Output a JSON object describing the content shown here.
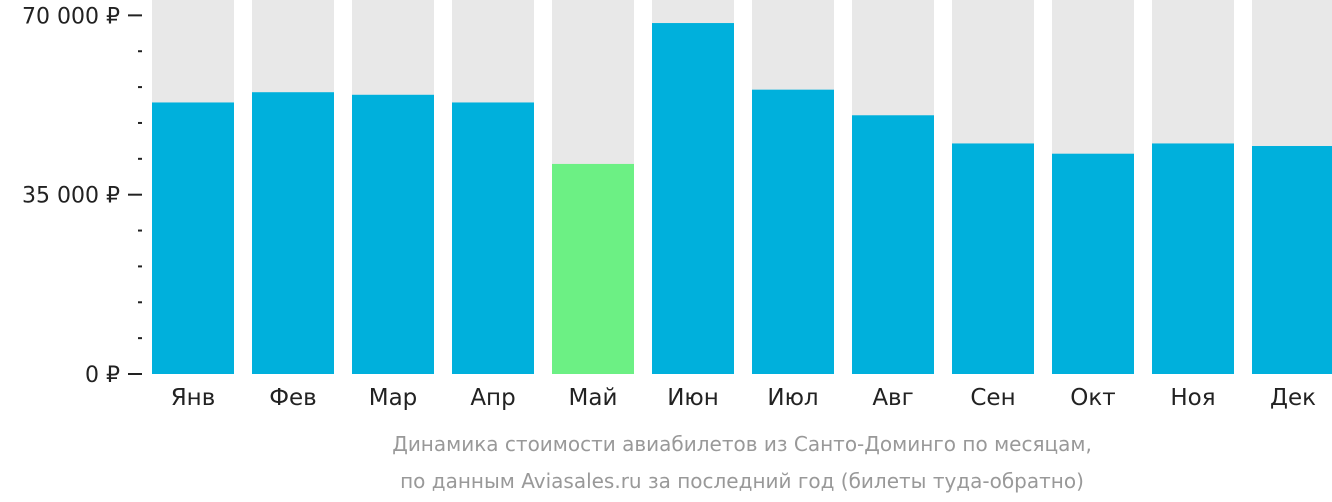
{
  "chart_data": {
    "type": "bar",
    "categories": [
      "Янв",
      "Фев",
      "Мар",
      "Апр",
      "Май",
      "Июн",
      "Июл",
      "Авг",
      "Сен",
      "Окт",
      "Ноя",
      "Дек"
    ],
    "values": [
      53000,
      55000,
      54500,
      53000,
      41000,
      68500,
      55500,
      50500,
      45000,
      43000,
      45000,
      44500
    ],
    "ylim": [
      0,
      73000
    ],
    "yticks": [
      {
        "value": 0,
        "label": "0 ₽"
      },
      {
        "value": 35000,
        "label": "35 000 ₽"
      },
      {
        "value": 70000,
        "label": "70 000 ₽"
      }
    ],
    "minor_tick_step": 7000,
    "highlight_index": 4,
    "colors": {
      "bar": "#00b0dc",
      "highlight": "#6cf084",
      "background_bar": "#e8e8e8",
      "axis": "#222222",
      "caption": "#999999"
    },
    "caption": [
      "Динамика стоимости авиабилетов из Санто-Доминго по месяцам,",
      "по данным Aviasales.ru за последний год (билеты туда-обратно)"
    ]
  }
}
